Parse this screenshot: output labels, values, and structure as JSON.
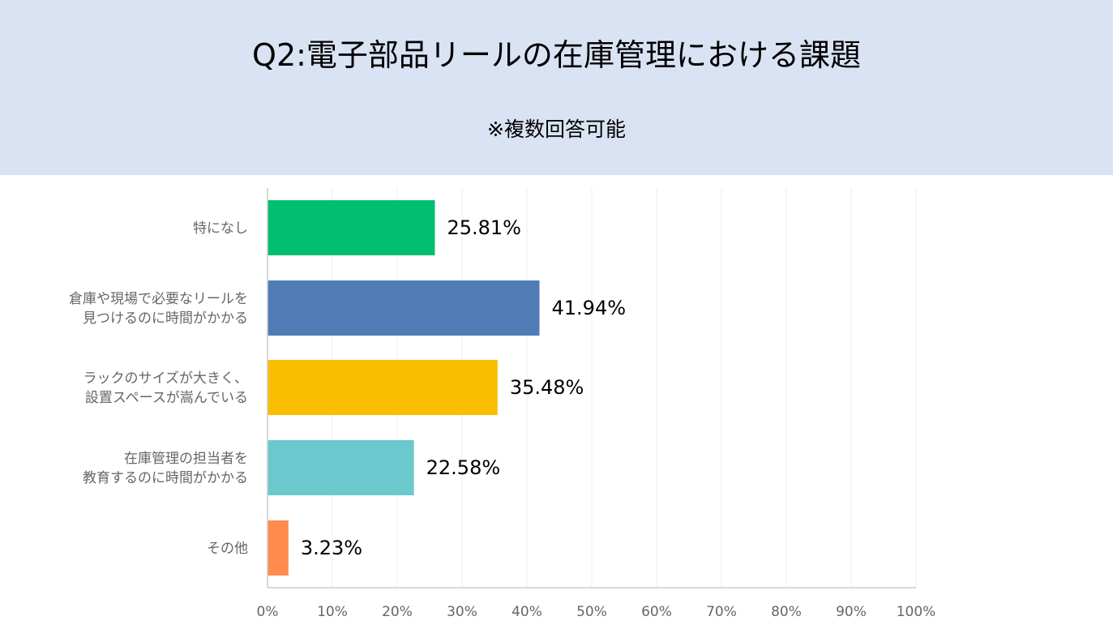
{
  "header": {
    "title": "Q2:電子部品リールの在庫管理における課題",
    "subtitle": "※複数回答可能"
  },
  "chart_data": {
    "type": "bar",
    "orientation": "horizontal",
    "title": "Q2:電子部品リールの在庫管理における課題",
    "subtitle": "※複数回答可能",
    "categories": [
      [
        "特になし"
      ],
      [
        "倉庫や現場で必要なリールを",
        "見つけるのに時間がかかる"
      ],
      [
        "ラックのサイズが大きく、",
        "設置スペースが嵩んでいる"
      ],
      [
        "在庫管理の担当者を",
        "教育するのに時間がかかる"
      ],
      [
        "その他"
      ]
    ],
    "values": [
      25.81,
      41.94,
      35.48,
      22.58,
      3.23
    ],
    "value_labels": [
      "25.81%",
      "41.94%",
      "35.48%",
      "22.58%",
      "3.23%"
    ],
    "colors": [
      "#00bf6f",
      "#507cb6",
      "#f9be00",
      "#6bc8cd",
      "#ff8b4f"
    ],
    "xlim": [
      0,
      100
    ],
    "xticks": [
      0,
      10,
      20,
      30,
      40,
      50,
      60,
      70,
      80,
      90,
      100
    ],
    "xtick_labels": [
      "0%",
      "10%",
      "20%",
      "30%",
      "40%",
      "50%",
      "60%",
      "70%",
      "80%",
      "90%",
      "100%"
    ],
    "grid": true,
    "legend": "none"
  }
}
